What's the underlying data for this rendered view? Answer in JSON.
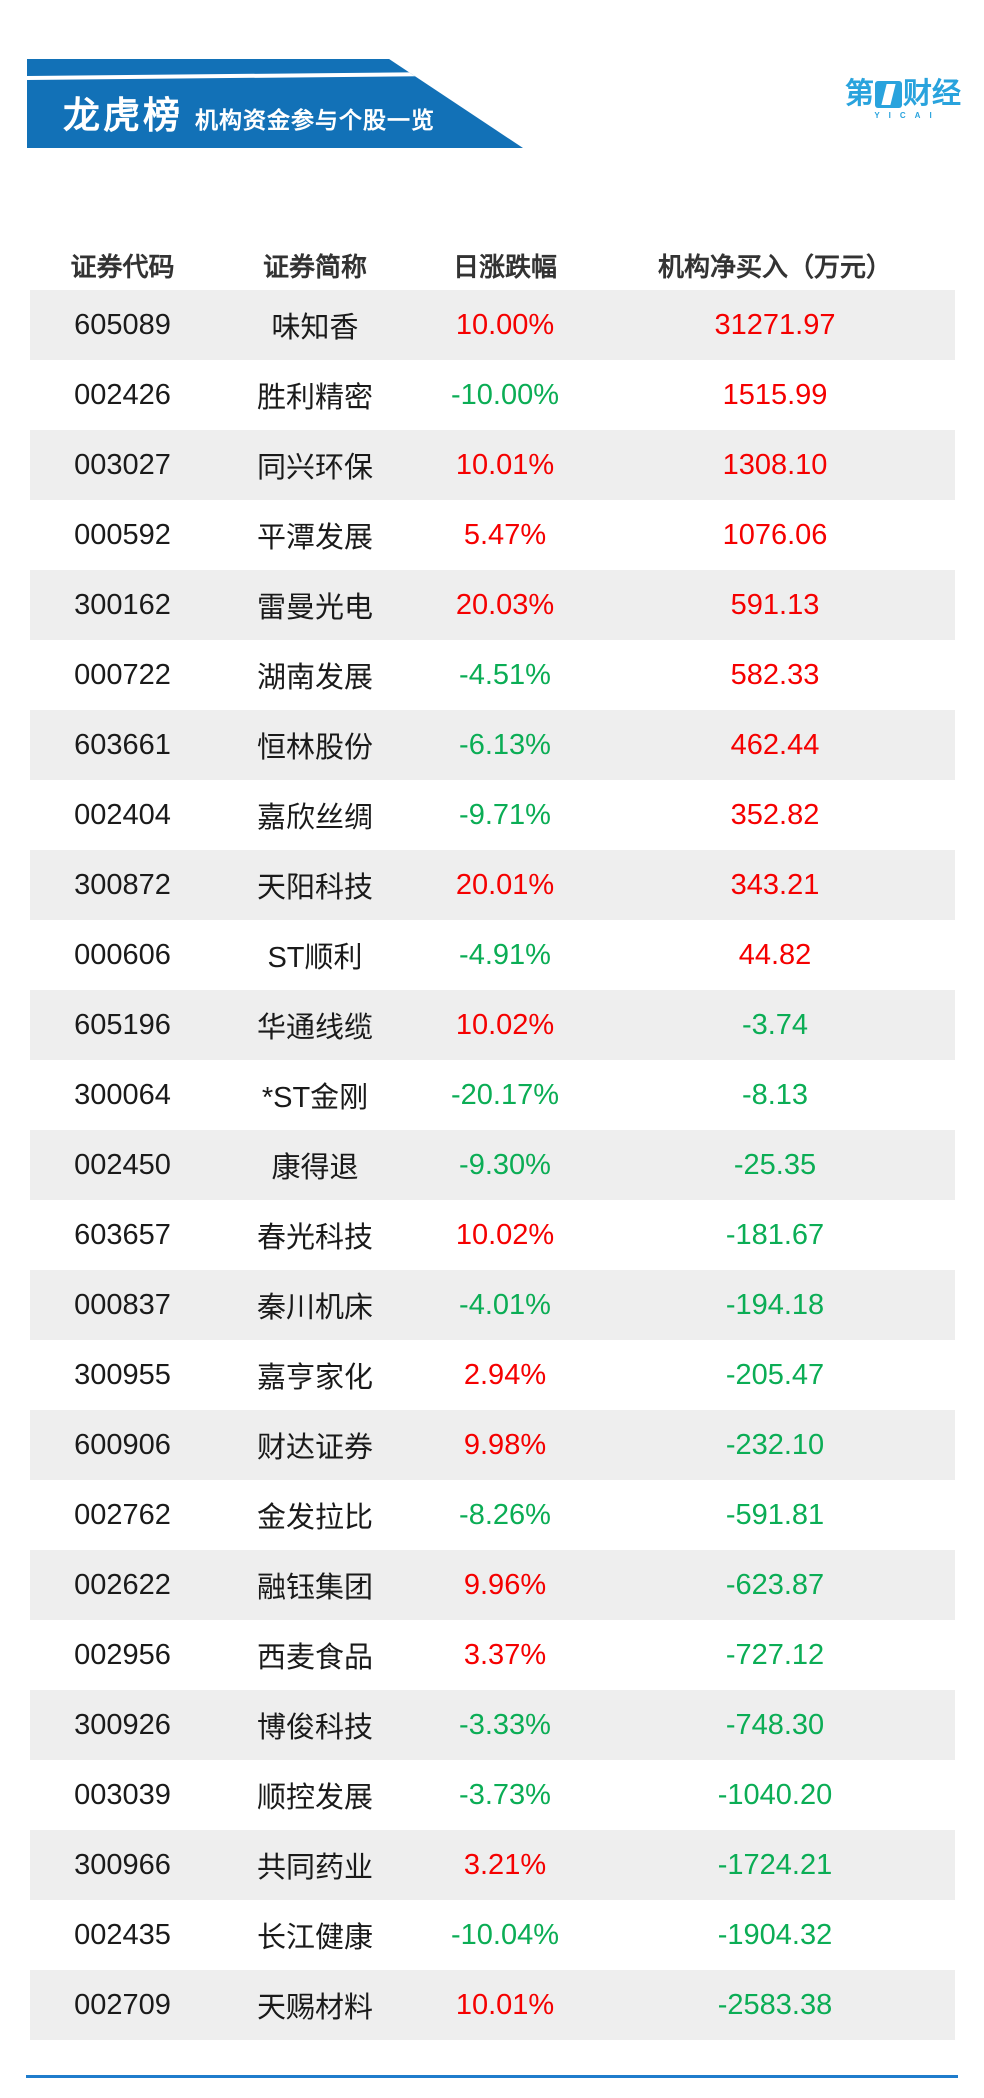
{
  "banner": {
    "title": "龙虎榜",
    "subtitle": "机构资金参与个股一览"
  },
  "logo": {
    "char_first": "第",
    "char_rest": "财经",
    "subtext": "YICAI"
  },
  "chart_data": {
    "type": "table",
    "title": "龙虎榜 机构资金参与个股一览",
    "columns": [
      "证券代码",
      "证券简称",
      "日涨跌幅",
      "机构净买入（万元）"
    ],
    "rows": [
      [
        "605089",
        "味知香",
        "10.00%",
        31271.97
      ],
      [
        "002426",
        "胜利精密",
        "-10.00%",
        1515.99
      ],
      [
        "003027",
        "同兴环保",
        "10.01%",
        1308.1
      ],
      [
        "000592",
        "平潭发展",
        "5.47%",
        1076.06
      ],
      [
        "300162",
        "雷曼光电",
        "20.03%",
        591.13
      ],
      [
        "000722",
        "湖南发展",
        "-4.51%",
        582.33
      ],
      [
        "603661",
        "恒林股份",
        "-6.13%",
        462.44
      ],
      [
        "002404",
        "嘉欣丝绸",
        "-9.71%",
        352.82
      ],
      [
        "300872",
        "天阳科技",
        "20.01%",
        343.21
      ],
      [
        "000606",
        "ST顺利",
        "-4.91%",
        44.82
      ],
      [
        "605196",
        "华通线缆",
        "10.02%",
        -3.74
      ],
      [
        "300064",
        "*ST金刚",
        "-20.17%",
        -8.13
      ],
      [
        "002450",
        "康得退",
        "-9.30%",
        -25.35
      ],
      [
        "603657",
        "春光科技",
        "10.02%",
        -181.67
      ],
      [
        "000837",
        "秦川机床",
        "-4.01%",
        -194.18
      ],
      [
        "300955",
        "嘉亨家化",
        "2.94%",
        -205.47
      ],
      [
        "600906",
        "财达证券",
        "9.98%",
        -232.1
      ],
      [
        "002762",
        "金发拉比",
        "-8.26%",
        -591.81
      ],
      [
        "002622",
        "融钰集团",
        "9.96%",
        -623.87
      ],
      [
        "002956",
        "西麦食品",
        "3.37%",
        -727.12
      ],
      [
        "300926",
        "博俊科技",
        "-3.33%",
        -748.3
      ],
      [
        "003039",
        "顺控发展",
        "-3.73%",
        -1040.2
      ],
      [
        "300966",
        "共同药业",
        "3.21%",
        -1724.21
      ],
      [
        "002435",
        "长江健康",
        "-10.04%",
        -1904.32
      ],
      [
        "002709",
        "天赐材料",
        "10.01%",
        -2583.38
      ]
    ]
  },
  "colors": {
    "up": "#f50000",
    "down": "#0bad55",
    "banner_bg": "#1271b7",
    "logo_blue": "#29a3dd",
    "alt_row": "#eeeeee",
    "header_text": "#333333",
    "cell_text": "#1a1a1a",
    "divider": "#1f7ccc"
  }
}
